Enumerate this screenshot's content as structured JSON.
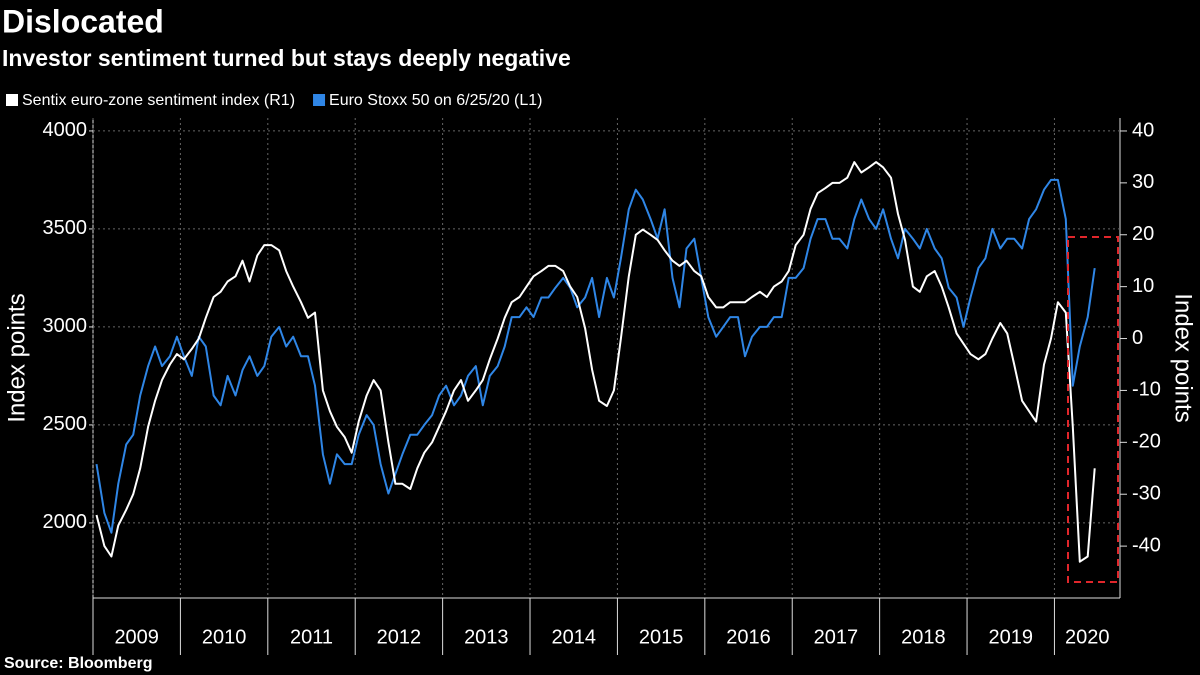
{
  "chart_data": {
    "type": "line",
    "title": "Dislocated",
    "subtitle": "Investor sentiment turned but stays deeply negative",
    "source": "Source: Bloomberg",
    "y_label": "Index points",
    "y2_label": "Index points",
    "x": [
      2009.04,
      2009.13,
      2009.21,
      2009.29,
      2009.38,
      2009.46,
      2009.54,
      2009.63,
      2009.71,
      2009.79,
      2009.88,
      2009.96,
      2010.04,
      2010.13,
      2010.21,
      2010.29,
      2010.38,
      2010.46,
      2010.54,
      2010.63,
      2010.71,
      2010.79,
      2010.88,
      2010.96,
      2011.04,
      2011.13,
      2011.21,
      2011.29,
      2011.38,
      2011.46,
      2011.54,
      2011.63,
      2011.71,
      2011.79,
      2011.88,
      2011.96,
      2012.04,
      2012.13,
      2012.21,
      2012.29,
      2012.38,
      2012.46,
      2012.54,
      2012.63,
      2012.71,
      2012.79,
      2012.88,
      2012.96,
      2013.04,
      2013.13,
      2013.21,
      2013.29,
      2013.38,
      2013.46,
      2013.54,
      2013.63,
      2013.71,
      2013.79,
      2013.88,
      2013.96,
      2014.04,
      2014.13,
      2014.21,
      2014.29,
      2014.38,
      2014.46,
      2014.54,
      2014.63,
      2014.71,
      2014.79,
      2014.88,
      2014.96,
      2015.04,
      2015.13,
      2015.21,
      2015.29,
      2015.38,
      2015.46,
      2015.54,
      2015.63,
      2015.71,
      2015.79,
      2015.88,
      2015.96,
      2016.04,
      2016.13,
      2016.21,
      2016.29,
      2016.38,
      2016.46,
      2016.54,
      2016.63,
      2016.71,
      2016.79,
      2016.88,
      2016.96,
      2017.04,
      2017.13,
      2017.21,
      2017.29,
      2017.38,
      2017.46,
      2017.54,
      2017.63,
      2017.71,
      2017.79,
      2017.88,
      2017.96,
      2018.04,
      2018.13,
      2018.21,
      2018.29,
      2018.38,
      2018.46,
      2018.54,
      2018.63,
      2018.71,
      2018.79,
      2018.88,
      2018.96,
      2019.04,
      2019.13,
      2019.21,
      2019.29,
      2019.38,
      2019.46,
      2019.54,
      2019.63,
      2019.71,
      2019.79,
      2019.88,
      2019.96,
      2020.04,
      2020.13,
      2020.21,
      2020.29,
      2020.38,
      2020.46
    ],
    "series": [
      {
        "name": "Sentix euro-zone sentiment index (R1)",
        "color": "#ffffff",
        "axis": "y2",
        "values": [
          -34,
          -40,
          -42,
          -36,
          -33,
          -30,
          -25,
          -17,
          -12,
          -8,
          -5,
          -3,
          -4,
          -2,
          0,
          4,
          8,
          9,
          11,
          12,
          15,
          11,
          16,
          18,
          18,
          17,
          13,
          10,
          7,
          4,
          5,
          -10,
          -14,
          -17,
          -19,
          -22,
          -16,
          -11,
          -8,
          -10,
          -20,
          -28,
          -28,
          -29,
          -25,
          -22,
          -20,
          -17,
          -14,
          -10,
          -8,
          -12,
          -10,
          -8,
          -4,
          0,
          4,
          7,
          8,
          10,
          12,
          13,
          14,
          14,
          13,
          10,
          8,
          2,
          -6,
          -12,
          -13,
          -10,
          0,
          12,
          20,
          21,
          20,
          19,
          17,
          15,
          14,
          15,
          13,
          12,
          8,
          6,
          6,
          7,
          7,
          7,
          8,
          9,
          8,
          10,
          11,
          13,
          18,
          20,
          25,
          28,
          29,
          30,
          30,
          31,
          34,
          32,
          33,
          34,
          33,
          31,
          24,
          19,
          10,
          9,
          12,
          13,
          10,
          6,
          1,
          -1,
          -3,
          -4,
          -3,
          0,
          3,
          1,
          -5,
          -12,
          -14,
          -16,
          -5,
          0,
          7,
          5,
          -17,
          -43,
          -42,
          -25
        ]
      },
      {
        "name": "Euro Stoxx 50 on 6/25/20 (L1)",
        "color": "#2f86e6",
        "values": [
          2300,
          2050,
          1950,
          2200,
          2400,
          2450,
          2650,
          2800,
          2900,
          2800,
          2850,
          2950,
          2850,
          2750,
          2950,
          2900,
          2650,
          2600,
          2750,
          2650,
          2780,
          2850,
          2750,
          2800,
          2950,
          3000,
          2900,
          2950,
          2850,
          2850,
          2700,
          2350,
          2200,
          2350,
          2300,
          2300,
          2450,
          2550,
          2500,
          2300,
          2150,
          2250,
          2350,
          2450,
          2450,
          2500,
          2550,
          2650,
          2700,
          2600,
          2650,
          2750,
          2800,
          2600,
          2750,
          2800,
          2900,
          3050,
          3050,
          3100,
          3050,
          3150,
          3150,
          3200,
          3250,
          3200,
          3100,
          3150,
          3250,
          3050,
          3250,
          3150,
          3350,
          3600,
          3700,
          3650,
          3550,
          3450,
          3600,
          3250,
          3100,
          3400,
          3450,
          3250,
          3050,
          2950,
          3000,
          3050,
          3050,
          2850,
          2950,
          3000,
          3000,
          3050,
          3050,
          3250,
          3250,
          3300,
          3450,
          3550,
          3550,
          3450,
          3450,
          3400,
          3550,
          3650,
          3550,
          3500,
          3600,
          3450,
          3350,
          3500,
          3450,
          3400,
          3500,
          3400,
          3350,
          3200,
          3150,
          3000,
          3150,
          3300,
          3350,
          3500,
          3400,
          3450,
          3450,
          3400,
          3550,
          3600,
          3700,
          3750,
          3750,
          3550,
          2700,
          2900,
          3050,
          3300
        ]
      }
    ],
    "xlim": [
      2009,
      2020.75
    ],
    "xticks": [
      2009,
      2010,
      2011,
      2012,
      2013,
      2014,
      2015,
      2016,
      2017,
      2018,
      2019,
      2020
    ],
    "ylim": [
      1617,
      4066
    ],
    "yticks": [
      2000,
      2500,
      3000,
      3500,
      4000
    ],
    "y2lim": [
      -50,
      42.5
    ],
    "y2ticks": [
      -40,
      -30,
      -20,
      -10,
      0,
      10,
      20,
      30,
      40
    ],
    "grid": true
  }
}
